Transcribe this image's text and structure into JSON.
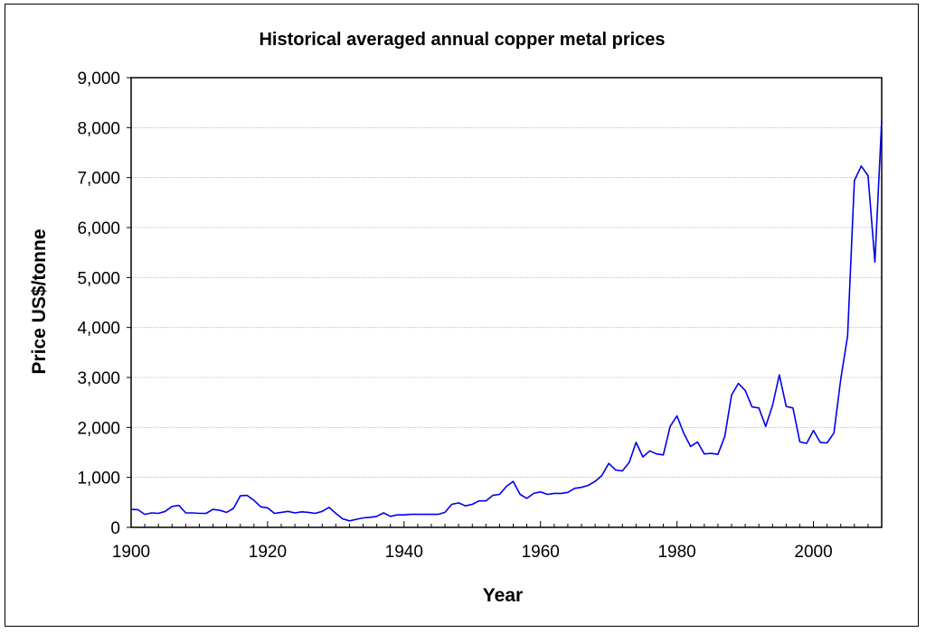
{
  "chart_data": {
    "type": "line",
    "title": "Historical averaged annual copper metal prices",
    "xlabel": "Year",
    "ylabel": "Price US$/tonne",
    "xlim": [
      1900,
      2010
    ],
    "ylim": [
      0,
      9000
    ],
    "x_ticks": [
      1900,
      1920,
      1940,
      1960,
      1980,
      2000
    ],
    "x_tick_labels": [
      "1900",
      "1920",
      "1940",
      "1960",
      "1980",
      "2000"
    ],
    "y_ticks": [
      0,
      1000,
      2000,
      3000,
      4000,
      5000,
      6000,
      7000,
      8000,
      9000
    ],
    "y_tick_labels": [
      "0",
      "1,000",
      "2,000",
      "3,000",
      "4,000",
      "5,000",
      "6,000",
      "7,000",
      "8,000",
      "9,000"
    ],
    "grid": "horizontal",
    "line_color": "#0000ee",
    "series": [
      {
        "x": [
          1900,
          1901,
          1902,
          1903,
          1904,
          1905,
          1906,
          1907,
          1908,
          1909,
          1910,
          1911,
          1912,
          1913,
          1914,
          1915,
          1916,
          1917,
          1918,
          1919,
          1920,
          1921,
          1922,
          1923,
          1924,
          1925,
          1926,
          1927,
          1928,
          1929,
          1930,
          1931,
          1932,
          1933,
          1934,
          1935,
          1936,
          1937,
          1938,
          1939,
          1940,
          1941,
          1942,
          1943,
          1944,
          1945,
          1946,
          1947,
          1948,
          1949,
          1950,
          1951,
          1952,
          1953,
          1954,
          1955,
          1956,
          1957,
          1958,
          1959,
          1960,
          1961,
          1962,
          1963,
          1964,
          1965,
          1966,
          1967,
          1968,
          1969,
          1970,
          1971,
          1972,
          1973,
          1974,
          1975,
          1976,
          1977,
          1978,
          1979,
          1980,
          1981,
          1982,
          1983,
          1984,
          1985,
          1986,
          1987,
          1988,
          1989,
          1990,
          1991,
          1992,
          1993,
          1994,
          1995,
          1996,
          1997,
          1998,
          1999,
          2000,
          2001,
          2002,
          2003,
          2004,
          2005,
          2006,
          2007,
          2008,
          2009,
          2010
        ],
        "values": [
          360,
          355,
          260,
          290,
          280,
          320,
          420,
          440,
          290,
          290,
          280,
          280,
          360,
          340,
          300,
          380,
          630,
          640,
          540,
          410,
          390,
          280,
          300,
          320,
          290,
          310,
          300,
          280,
          320,
          400,
          280,
          170,
          130,
          160,
          190,
          200,
          220,
          290,
          220,
          250,
          250,
          260,
          260,
          260,
          260,
          260,
          300,
          460,
          490,
          430,
          460,
          530,
          530,
          640,
          660,
          820,
          920,
          660,
          580,
          680,
          710,
          660,
          680,
          680,
          700,
          780,
          800,
          840,
          920,
          1040,
          1280,
          1150,
          1130,
          1300,
          1700,
          1410,
          1530,
          1470,
          1450,
          2020,
          2230,
          1880,
          1620,
          1710,
          1470,
          1480,
          1460,
          1820,
          2650,
          2880,
          2740,
          2410,
          2390,
          2020,
          2440,
          3050,
          2420,
          2390,
          1710,
          1680,
          1940,
          1700,
          1690,
          1890,
          2960,
          3830,
          6940,
          7230,
          7040,
          5310,
          8140
        ]
      }
    ]
  }
}
